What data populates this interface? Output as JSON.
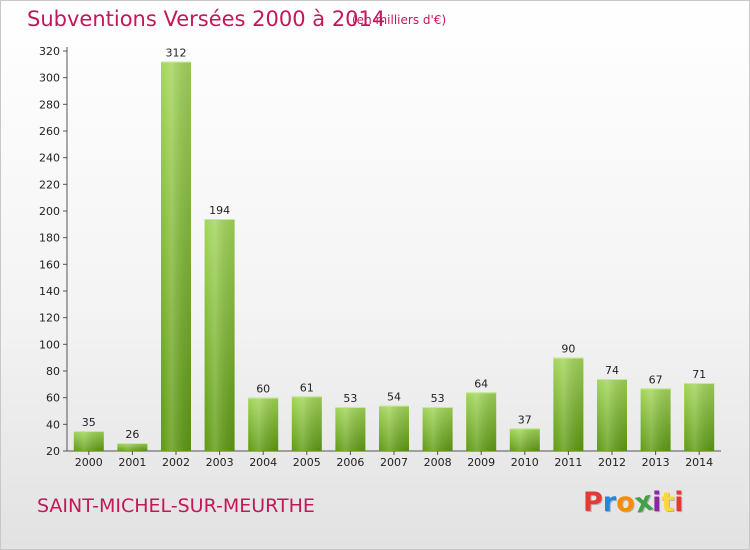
{
  "header": {
    "title": "Subventions Versées 2000 à 2014",
    "subtitle": "(en milliers d'€)"
  },
  "footer": {
    "commune": "SAINT-MICHEL-SUR-MEURTHE",
    "logo": "Proxiti",
    "logo_colors": [
      "#e53935",
      "#1e88e5",
      "#fb8c00",
      "#43a047",
      "#8e24aa",
      "#fdd835",
      "#e53935"
    ]
  },
  "colors": {
    "bar_top": "#a3d65a",
    "bar_bottom": "#5f9a14",
    "axis": "#555555",
    "grid": "#cccccc",
    "text": "#222222",
    "accent": "#c2185b"
  },
  "chart_data": {
    "type": "bar",
    "title": "Subventions Versées 2000 à 2014",
    "subtitle": "(en milliers d'€)",
    "xlabel": "",
    "ylabel": "",
    "categories": [
      "2000",
      "2001",
      "2002",
      "2003",
      "2004",
      "2005",
      "2006",
      "2007",
      "2008",
      "2009",
      "2010",
      "2011",
      "2012",
      "2013",
      "2014"
    ],
    "values": [
      35,
      26,
      312,
      194,
      60,
      61,
      53,
      54,
      53,
      64,
      37,
      90,
      74,
      67,
      71
    ],
    "ylim": [
      20,
      320
    ],
    "yticks": [
      20,
      40,
      60,
      80,
      100,
      120,
      140,
      160,
      180,
      200,
      220,
      240,
      260,
      280,
      300,
      320
    ],
    "grid": false,
    "legend": "none",
    "data_labels": true
  }
}
